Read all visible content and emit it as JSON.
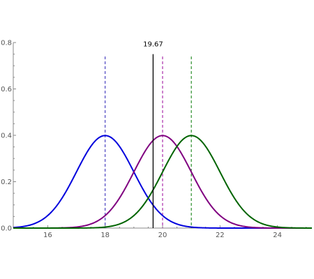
{
  "chart_data": {
    "type": "line",
    "xlim": [
      14.8,
      25.2
    ],
    "ylim": [
      0,
      0.8
    ],
    "x_ticks": [
      16,
      18,
      20,
      22,
      24
    ],
    "x_tick_labels": [
      "16",
      "18",
      "20",
      "22",
      "24"
    ],
    "y_ticks": [
      0,
      0.2,
      0.4,
      0.6,
      0.8
    ],
    "y_tick_labels": [
      "0.0",
      "0.2",
      "0.4",
      "0.6",
      "0.8"
    ],
    "grid": false,
    "series": [
      {
        "mean": 18,
        "sd": 1,
        "color": "#0000dd",
        "dash_color": "#2a1fb5"
      },
      {
        "mean": 20,
        "sd": 1,
        "color": "#800080",
        "dash_color": "#990099"
      },
      {
        "mean": 21,
        "sd": 1,
        "color": "#006400",
        "dash_color": "#007700"
      }
    ],
    "mean_line_top": 0.74,
    "marker": {
      "x": 19.67,
      "label": "19.67",
      "top": 0.75,
      "color": "#000000"
    }
  }
}
